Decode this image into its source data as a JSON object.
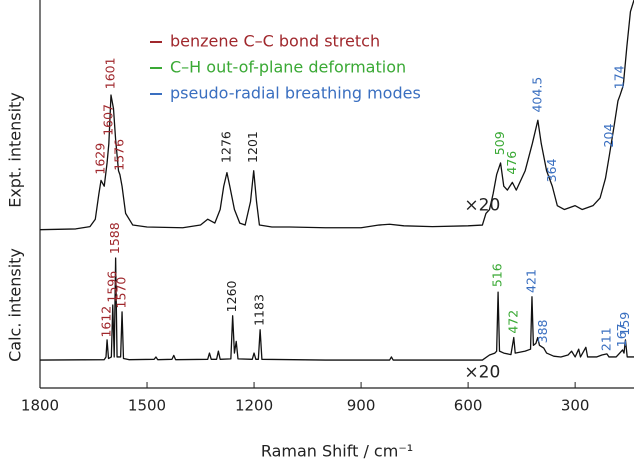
{
  "chart_data": {
    "type": "line",
    "xlabel": "Raman Shift / cm⁻¹",
    "ylabels": [
      "Expt. intensity",
      "Calc. intensity"
    ],
    "xlim": [
      1800,
      135
    ],
    "ylim": [
      0,
      100
    ],
    "xticks": [
      1800,
      1500,
      1200,
      900,
      600,
      300
    ],
    "legend": [
      {
        "text": "benzene C–C bond stretch",
        "color": "#a0282d"
      },
      {
        "text": "C–H out-of-plane deformation",
        "color": "#3aa935"
      },
      {
        "text": "pseudo-radial breathing modes",
        "color": "#3a6fc0"
      }
    ],
    "series": [
      {
        "name": "Expt.",
        "color": "#111",
        "x": [
          1800,
          1700,
          1660,
          1645,
          1635,
          1629,
          1620,
          1612,
          1607,
          1601,
          1594,
          1588,
          1580,
          1576,
          1570,
          1560,
          1540,
          1500,
          1400,
          1350,
          1330,
          1310,
          1295,
          1285,
          1276,
          1268,
          1255,
          1240,
          1225,
          1210,
          1201,
          1193,
          1185,
          1150,
          1100,
          1000,
          900,
          850,
          820,
          780,
          700,
          600,
          560,
          550,
          540,
          530,
          520,
          509,
          500,
          490,
          476,
          465,
          450,
          440,
          420,
          404.5,
          395,
          380,
          364,
          350,
          330,
          300,
          280,
          250,
          230,
          215,
          204,
          190,
          180,
          174,
          165,
          155,
          145,
          135
        ],
        "values": [
          40.8,
          41.0,
          41.6,
          43.5,
          50,
          53.5,
          52,
          58,
          63,
          75.5,
          72,
          64,
          56,
          55,
          52,
          45,
          42,
          41.5,
          41.3,
          42,
          43.5,
          42.5,
          46,
          52,
          55.5,
          52,
          46,
          42.5,
          42,
          48,
          56,
          48,
          42,
          41.5,
          41.5,
          41.3,
          41.3,
          42,
          42.2,
          41.8,
          41.6,
          41.8,
          42,
          45,
          46,
          50,
          55,
          58,
          52,
          51,
          53,
          51,
          54,
          56,
          63,
          69,
          63,
          56,
          52,
          47,
          46,
          47,
          46,
          47,
          49,
          54,
          60,
          68,
          74,
          75.5,
          78,
          88,
          97,
          100
        ]
      },
      {
        "name": "Calc.",
        "color": "#111",
        "x": [
          1800,
          1620,
          1615,
          1612,
          1608,
          1600,
          1596,
          1592,
          1588,
          1584,
          1574,
          1570,
          1566,
          1550,
          1480,
          1475,
          1470,
          1430,
          1425,
          1420,
          1330,
          1325,
          1320,
          1305,
          1300,
          1295,
          1265,
          1260,
          1255,
          1250,
          1245,
          1205,
          1200,
          1195,
          1188,
          1183,
          1178,
          1000,
          820,
          815,
          810,
          560,
          540,
          525,
          520,
          516,
          512,
          500,
          480,
          472,
          468,
          440,
          425,
          421,
          417,
          410,
          405,
          400,
          388,
          380,
          360,
          340,
          320,
          310,
          300,
          290,
          285,
          270,
          265,
          240,
          225,
          211,
          205,
          185,
          175,
          167,
          163,
          159,
          154,
          140,
          135
        ],
        "values": [
          7.2,
          7.3,
          8,
          12.4,
          7.6,
          8,
          21.4,
          8,
          33.5,
          8,
          8,
          19.6,
          7.6,
          7.3,
          7.4,
          8,
          7.3,
          7.4,
          8.4,
          7.3,
          7.4,
          9,
          7.4,
          7.4,
          9.5,
          7.4,
          7.5,
          18.6,
          9,
          12,
          7.5,
          7.4,
          9,
          7.4,
          7.4,
          15,
          7.4,
          7.2,
          7.2,
          8,
          7.2,
          7.2,
          8.5,
          9,
          9.5,
          24.7,
          9.5,
          9,
          8.6,
          13,
          9,
          9.5,
          10,
          23.5,
          11,
          11.5,
          13,
          11,
          10.3,
          9,
          8.2,
          8,
          8.5,
          9.5,
          8,
          10,
          8,
          10.5,
          8,
          8,
          8.5,
          8.8,
          8,
          8,
          9,
          9.8,
          9,
          12.4,
          8,
          8,
          8
        ]
      }
    ],
    "annotations": [
      {
        "text": "1629",
        "x": 1629,
        "y": 55,
        "color": "#a0282d"
      },
      {
        "text": "1607",
        "x": 1607,
        "y": 65,
        "color": "#a0282d"
      },
      {
        "text": "1601",
        "x": 1601,
        "y": 77,
        "color": "#a0282d"
      },
      {
        "text": "1576",
        "x": 1576,
        "y": 56,
        "color": "#a0282d"
      },
      {
        "text": "1276",
        "x": 1276,
        "y": 58,
        "color": "#222"
      },
      {
        "text": "1201",
        "x": 1201,
        "y": 58,
        "color": "#222"
      },
      {
        "text": "509",
        "x": 509,
        "y": 60,
        "color": "#3aa935"
      },
      {
        "text": "476",
        "x": 476,
        "y": 55,
        "color": "#3aa935"
      },
      {
        "text": "404.5",
        "x": 404.5,
        "y": 71,
        "color": "#3a6fc0"
      },
      {
        "text": "364",
        "x": 364,
        "y": 53,
        "color": "#3a6fc0"
      },
      {
        "text": "204",
        "x": 204,
        "y": 62,
        "color": "#3a6fc0"
      },
      {
        "text": "174",
        "x": 174,
        "y": 77,
        "color": "#3a6fc0"
      },
      {
        "text": "1612",
        "x": 1612,
        "y": 13,
        "color": "#a0282d"
      },
      {
        "text": "1596",
        "x": 1596,
        "y": 22,
        "color": "#a0282d"
      },
      {
        "text": "1588",
        "x": 1588,
        "y": 34.5,
        "color": "#a0282d"
      },
      {
        "text": "1570",
        "x": 1570,
        "y": 20.5,
        "color": "#a0282d"
      },
      {
        "text": "1260",
        "x": 1260,
        "y": 19.5,
        "color": "#222"
      },
      {
        "text": "1183",
        "x": 1183,
        "y": 16,
        "color": "#222"
      },
      {
        "text": "516",
        "x": 516,
        "y": 26,
        "color": "#3aa935"
      },
      {
        "text": "472",
        "x": 472,
        "y": 14,
        "color": "#3aa935"
      },
      {
        "text": "421",
        "x": 421,
        "y": 24.5,
        "color": "#3a6fc0"
      },
      {
        "text": "388",
        "x": 388,
        "y": 11.5,
        "color": "#3a6fc0"
      },
      {
        "text": "211",
        "x": 211,
        "y": 9.5,
        "color": "#3a6fc0"
      },
      {
        "text": "167",
        "x": 167,
        "y": 10.5,
        "color": "#3a6fc0"
      },
      {
        "text": "159",
        "x": 159,
        "y": 13.5,
        "color": "#3a6fc0"
      }
    ],
    "multipliers": [
      {
        "text": "×20",
        "x": 560,
        "y": 47
      },
      {
        "text": "×20",
        "x": 560,
        "y": 4
      }
    ]
  }
}
